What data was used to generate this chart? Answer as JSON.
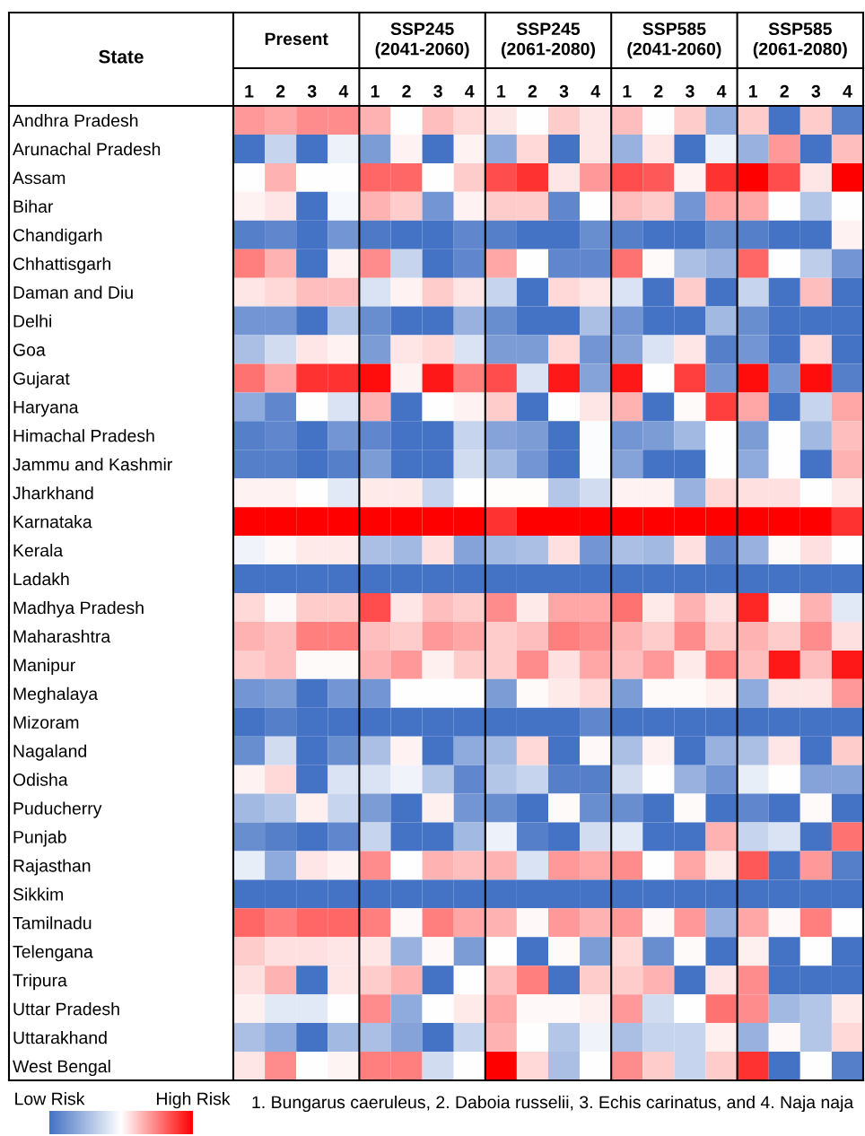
{
  "chart_data": {
    "type": "heatmap",
    "ylabel": "State",
    "categories": [
      "1",
      "2",
      "3",
      "4",
      "1",
      "2",
      "3",
      "4",
      "1",
      "2",
      "3",
      "4",
      "1",
      "2",
      "3",
      "4",
      "1",
      "2",
      "3",
      "4"
    ],
    "y_categories": [
      "Andhra Pradesh",
      "Arunachal Pradesh",
      "Assam",
      "Bihar",
      "Chandigarh",
      "Chhattisgarh",
      "Daman and Diu",
      "Delhi",
      "Goa",
      "Gujarat",
      "Haryana",
      "Himachal Pradesh",
      "Jammu and Kashmir",
      "Jharkhand",
      "Karnataka",
      "Kerala",
      "Ladakh",
      "Madhya Pradesh",
      "Maharashtra",
      "Manipur",
      "Meghalaya",
      "Mizoram",
      "Nagaland",
      "Odisha",
      "Puducherry",
      "Punjab",
      "Rajasthan",
      "Sikkim",
      "Tamilnadu",
      "Telengana",
      "Tripura",
      "Uttar Pradesh",
      "Uttarakhand",
      "West Bengal"
    ],
    "cells": [
      [
        0.4,
        0.35,
        0.45,
        0.45,
        0.3,
        0,
        0.25,
        0.15,
        0.1,
        0,
        0.2,
        0.1,
        0.25,
        0,
        0.2,
        -0.6,
        0.2,
        -1,
        0.2,
        -0.9
      ],
      [
        -1,
        -0.3,
        -1,
        -0.1,
        -0.7,
        0.05,
        -1,
        0.05,
        -0.6,
        0.15,
        -1,
        0.1,
        -0.55,
        0.1,
        -1,
        -0.1,
        -0.55,
        0.4,
        -1,
        0.25
      ],
      [
        0,
        0.3,
        0,
        0,
        0.6,
        0.6,
        0,
        0.2,
        0.7,
        0.8,
        0.1,
        0.4,
        0.7,
        0.65,
        0.05,
        0.8,
        1,
        0.7,
        0.1,
        1
      ],
      [
        0.05,
        0.1,
        -1,
        -0.05,
        0.3,
        0.2,
        -0.75,
        0.05,
        0.2,
        0.2,
        -0.85,
        0,
        0.25,
        0.2,
        -0.75,
        0.35,
        0.35,
        0,
        -0.4,
        0
      ],
      [
        -0.9,
        -0.85,
        -1,
        -0.75,
        -0.95,
        -1,
        -1,
        -0.85,
        -0.9,
        -1,
        -1,
        -0.8,
        -0.9,
        -1,
        -1,
        -0.8,
        -0.9,
        -1,
        -1,
        0.05
      ],
      [
        0.5,
        0.3,
        -1,
        0.05,
        0.45,
        -0.3,
        -1,
        -0.85,
        0.35,
        0,
        -0.85,
        -0.85,
        0.55,
        0.02,
        -0.45,
        -0.55,
        0.6,
        0,
        -0.35,
        -0.75
      ],
      [
        0.1,
        0.15,
        0.25,
        0.25,
        -0.2,
        0.05,
        0.2,
        0.1,
        -0.3,
        -1,
        0.15,
        0.1,
        -0.2,
        -1,
        0.2,
        -1,
        -0.3,
        -1,
        0.25,
        -1
      ],
      [
        -0.75,
        -0.75,
        -1,
        -0.4,
        -0.8,
        -1,
        -1,
        -0.55,
        -0.8,
        -1,
        -1,
        -0.45,
        -0.75,
        -1,
        -1,
        -0.5,
        -0.8,
        -1,
        -1,
        -1
      ],
      [
        -0.45,
        -0.25,
        0.1,
        0.05,
        -0.7,
        0.1,
        0.15,
        -0.2,
        -0.7,
        -0.7,
        0.15,
        -0.75,
        -0.65,
        -0.2,
        0.1,
        -0.9,
        -0.75,
        -1,
        0.15,
        -1
      ],
      [
        0.55,
        0.35,
        0.8,
        0.8,
        0.95,
        0.05,
        0.9,
        0.5,
        0.7,
        -0.2,
        0.9,
        -0.65,
        0.9,
        0,
        0.75,
        -0.75,
        0.95,
        -0.75,
        0.95,
        -0.9
      ],
      [
        -0.6,
        -0.85,
        0,
        -0.2,
        0.3,
        -1,
        0,
        0.05,
        0.2,
        -1,
        0,
        0.1,
        0.3,
        -1,
        0.02,
        0.75,
        0.35,
        -1,
        -0.3,
        0.35
      ],
      [
        -0.9,
        -0.85,
        -1,
        -0.75,
        -0.85,
        -1,
        -1,
        -0.3,
        -0.65,
        -0.7,
        -1,
        -0.02,
        -0.75,
        -0.7,
        -0.5,
        0,
        -0.7,
        0,
        -0.5,
        0.25
      ],
      [
        -0.9,
        -0.9,
        -1,
        -0.9,
        -0.7,
        -1,
        -1,
        -0.25,
        -0.5,
        -0.75,
        -1,
        -0.02,
        -0.65,
        -1,
        -1,
        0,
        -0.6,
        0,
        -1,
        0.3
      ],
      [
        0.05,
        0.05,
        0,
        -0.15,
        0.08,
        0.08,
        -0.3,
        0,
        0.01,
        0.01,
        -0.4,
        -0.25,
        0.05,
        0.05,
        -0.55,
        0.15,
        0.12,
        0.12,
        0,
        0.08
      ],
      [
        1,
        1,
        1,
        1,
        1,
        1,
        1,
        1,
        0.8,
        1,
        1,
        1,
        1,
        1,
        1,
        1,
        1,
        1,
        1,
        0.8
      ],
      [
        -0.08,
        0.03,
        0.08,
        0.08,
        -0.45,
        -0.5,
        0.12,
        -0.65,
        -0.5,
        -0.45,
        0.12,
        -0.75,
        -0.45,
        -0.5,
        0.12,
        -0.85,
        -0.55,
        0.02,
        0.12,
        0
      ],
      [
        -1,
        -1,
        -1,
        -1,
        -1,
        -1,
        -1,
        -1,
        -1,
        -1,
        -1,
        -1,
        -1,
        -1,
        -1,
        -1,
        -1,
        -1,
        -1,
        -1
      ],
      [
        0.15,
        0.03,
        0.2,
        0.2,
        0.7,
        0.1,
        0.25,
        0.2,
        0.45,
        0.08,
        0.35,
        0.35,
        0.55,
        0.08,
        0.3,
        0.12,
        0.85,
        0.02,
        0.3,
        -0.15
      ],
      [
        0.3,
        0.25,
        0.5,
        0.5,
        0.25,
        0.2,
        0.4,
        0.35,
        0.2,
        0.25,
        0.5,
        0.45,
        0.3,
        0.2,
        0.45,
        0.2,
        0.3,
        0.2,
        0.45,
        0.12
      ],
      [
        0.2,
        0.25,
        0.02,
        0.02,
        0.3,
        0.4,
        0.06,
        0.2,
        0.2,
        0.45,
        0.12,
        0.35,
        0.25,
        0.4,
        0.08,
        0.5,
        0.25,
        0.9,
        0.25,
        0.9
      ],
      [
        -0.75,
        -0.7,
        -1,
        -0.75,
        -0.75,
        0,
        0,
        0,
        -0.7,
        0.02,
        0.08,
        0.15,
        -0.7,
        0.02,
        0.02,
        0.06,
        -0.6,
        0.1,
        0.1,
        0.4
      ],
      [
        -1,
        -0.9,
        -1,
        -1,
        -1,
        -1,
        -1,
        -1,
        -1,
        -1,
        -1,
        -0.85,
        -1,
        -1,
        -1,
        -1,
        -1,
        -1,
        -1,
        -1
      ],
      [
        -0.8,
        -0.25,
        -1,
        -0.8,
        -0.45,
        0.05,
        -1,
        -0.6,
        -0.5,
        0.15,
        -1,
        0.03,
        -0.45,
        0.05,
        -1,
        -0.55,
        -0.45,
        0.1,
        -1,
        0.2
      ],
      [
        0.05,
        0.15,
        -1,
        -0.2,
        -0.2,
        -0.08,
        -0.4,
        -0.85,
        -0.4,
        -0.3,
        -0.9,
        -0.9,
        -0.25,
        0,
        -0.55,
        -0.75,
        -0.12,
        0,
        -0.65,
        -0.65
      ],
      [
        -0.5,
        -0.4,
        0.06,
        -0.3,
        -0.7,
        -1,
        0.06,
        -0.75,
        -0.8,
        -1,
        0.02,
        -0.8,
        -0.8,
        -1,
        0.02,
        -1,
        -0.85,
        -1,
        0.02,
        -1
      ],
      [
        -0.8,
        -0.9,
        -1,
        -0.85,
        -0.3,
        -1,
        -1,
        -0.5,
        -0.1,
        -0.9,
        -1,
        -0.25,
        -0.15,
        -1,
        -1,
        0.3,
        -0.3,
        -0.2,
        -1,
        0.55
      ],
      [
        -0.12,
        -0.6,
        0.1,
        0.05,
        0.45,
        0,
        0.3,
        0.25,
        0.3,
        -0.2,
        0.4,
        0.35,
        0.45,
        0,
        0.35,
        0.08,
        0.65,
        -1,
        0.4,
        -0.9
      ],
      [
        -1,
        -1,
        -1,
        -1,
        -1,
        -1,
        -1,
        -1,
        -1,
        -1,
        -1,
        -1,
        -1,
        -1,
        -1,
        -1,
        -1,
        -1,
        -1,
        -1
      ],
      [
        0.6,
        0.5,
        0.6,
        0.6,
        0.5,
        0.03,
        0.5,
        0.35,
        0.3,
        0.03,
        0.4,
        0.3,
        0.4,
        0.03,
        0.4,
        -0.55,
        0.35,
        0.03,
        0.5,
        0
      ],
      [
        0.2,
        0.12,
        0.12,
        0.1,
        0.1,
        -0.55,
        0.03,
        -0.7,
        0,
        -1,
        0.02,
        -0.7,
        0.15,
        -0.8,
        0.02,
        -1,
        0.06,
        -1,
        0,
        -1
      ],
      [
        0.12,
        0.3,
        -1,
        0.1,
        0.2,
        0.3,
        -1,
        0,
        0.25,
        0.5,
        -1,
        0.2,
        0.2,
        0.3,
        -1,
        0.1,
        0.45,
        -1,
        -1,
        -1
      ],
      [
        0.06,
        -0.15,
        -0.15,
        0,
        0.45,
        -0.6,
        0,
        0.08,
        0.35,
        0.03,
        0.03,
        0.06,
        0.4,
        -0.25,
        0,
        0.55,
        0.45,
        -0.5,
        -0.4,
        0.08
      ],
      [
        -0.45,
        -0.6,
        -1,
        -0.5,
        -0.45,
        -0.65,
        -1,
        -0.3,
        0.3,
        0,
        -0.4,
        -0.08,
        -0.45,
        -0.3,
        -0.3,
        0.06,
        -0.55,
        0.03,
        -0.4,
        0.15
      ],
      [
        0.1,
        0.45,
        0,
        0.04,
        0.5,
        0.5,
        -0.25,
        0,
        1,
        0.15,
        -0.45,
        0,
        0.45,
        0.2,
        -0.3,
        0.2,
        0.8,
        -1,
        0,
        -0.9
      ]
    ],
    "clim": [
      -1,
      1
    ],
    "cticks": [
      {
        "value": -1,
        "label": "Low Risk"
      },
      {
        "value": 1,
        "label": "High Risk"
      }
    ],
    "annotations": [
      "Present",
      "SSP245\n(2041-2060)",
      "SSP245\n(2061-2080)",
      "SSP585\n(2041-2060)",
      "SSP585\n(2061-2080)",
      "1. Bungarus caeruleus, 2. Daboia russelii, 3. Echis carinatus, and 4. Naja naja"
    ]
  }
}
